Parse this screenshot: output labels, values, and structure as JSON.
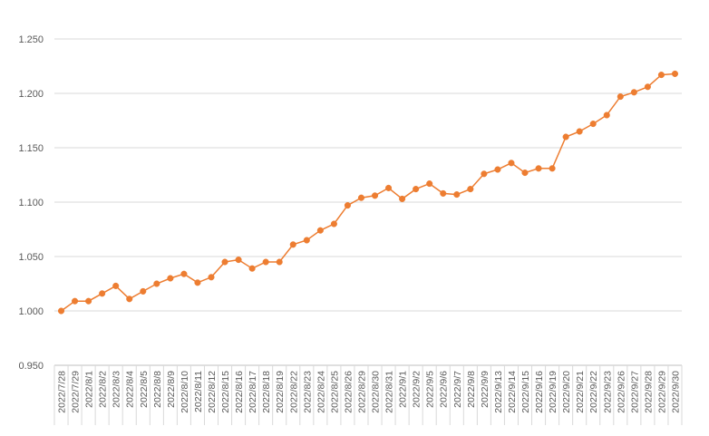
{
  "chart_data": {
    "type": "line",
    "title": "",
    "xlabel": "",
    "ylabel": "",
    "ylim": [
      0.95,
      1.25
    ],
    "yticks": [
      "0.950",
      "1.000",
      "1.050",
      "1.100",
      "1.150",
      "1.200",
      "1.250"
    ],
    "grid": true,
    "legend": "none",
    "colors": {
      "series": "#ED7D31",
      "grid": "#D9D9D9",
      "axis": "#BFBFBF",
      "text": "#595959"
    },
    "categories": [
      "2022/7/28",
      "2022/7/29",
      "2022/8/1",
      "2022/8/2",
      "2022/8/3",
      "2022/8/4",
      "2022/8/5",
      "2022/8/8",
      "2022/8/9",
      "2022/8/10",
      "2022/8/11",
      "2022/8/12",
      "2022/8/15",
      "2022/8/16",
      "2022/8/17",
      "2022/8/18",
      "2022/8/19",
      "2022/8/22",
      "2022/8/23",
      "2022/8/24",
      "2022/8/25",
      "2022/8/26",
      "2022/8/29",
      "2022/8/30",
      "2022/8/31",
      "2022/9/1",
      "2022/9/2",
      "2022/9/5",
      "2022/9/6",
      "2022/9/7",
      "2022/9/8",
      "2022/9/9",
      "2022/9/13",
      "2022/9/14",
      "2022/9/15",
      "2022/9/16",
      "2022/9/19",
      "2022/9/20",
      "2022/9/21",
      "2022/9/22",
      "2022/9/23",
      "2022/9/26",
      "2022/9/27",
      "2022/9/28",
      "2022/9/29",
      "2022/9/30"
    ],
    "series": [
      {
        "values": [
          1.0,
          1.009,
          1.009,
          1.016,
          1.023,
          1.011,
          1.018,
          1.025,
          1.03,
          1.034,
          1.026,
          1.031,
          1.045,
          1.047,
          1.039,
          1.045,
          1.045,
          1.061,
          1.065,
          1.074,
          1.08,
          1.097,
          1.104,
          1.106,
          1.113,
          1.103,
          1.112,
          1.117,
          1.108,
          1.107,
          1.112,
          1.126,
          1.13,
          1.136,
          1.127,
          1.131,
          1.131,
          1.16,
          1.165,
          1.172,
          1.18,
          1.197,
          1.201,
          1.206,
          1.217,
          1.218
        ]
      }
    ]
  }
}
